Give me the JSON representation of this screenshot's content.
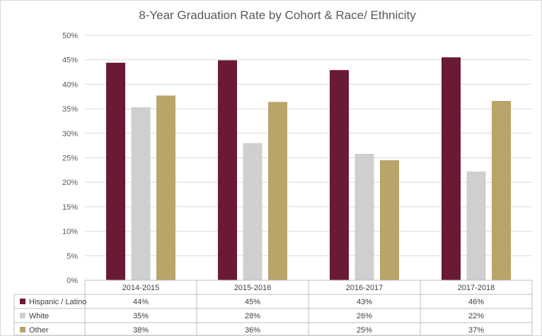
{
  "chart_data": {
    "type": "bar",
    "title": "8-Year Graduation Rate by Cohort & Race/ Ethnicity",
    "categories": [
      "2014-2015",
      "2015-2016",
      "2016-2017",
      "2017-2018"
    ],
    "series": [
      {
        "name": "Hispanic / Latino",
        "color": "#6b1a34",
        "values": [
          44.4,
          44.9,
          42.9,
          45.5
        ],
        "labels": [
          "44%",
          "45%",
          "43%",
          "46%"
        ]
      },
      {
        "name": "White",
        "color": "#cfcfcf",
        "values": [
          35.3,
          28.0,
          25.8,
          22.2
        ],
        "labels": [
          "35%",
          "28%",
          "26%",
          "22%"
        ]
      },
      {
        "name": "Other",
        "color": "#b9a46a",
        "values": [
          37.7,
          36.4,
          24.5,
          36.6
        ],
        "labels": [
          "38%",
          "36%",
          "25%",
          "37%"
        ]
      }
    ],
    "yticks": [
      "0%",
      "5%",
      "10%",
      "15%",
      "20%",
      "25%",
      "30%",
      "35%",
      "40%",
      "45%",
      "50%"
    ],
    "ylim": [
      0,
      50
    ],
    "grid": true,
    "legend": "data-table-left"
  }
}
